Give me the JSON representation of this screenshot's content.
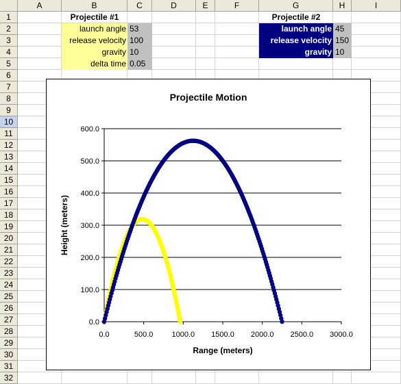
{
  "columns": [
    "A",
    "B",
    "C",
    "D",
    "E",
    "F",
    "G",
    "H",
    "I"
  ],
  "rows": [
    "1",
    "2",
    "3",
    "4",
    "5",
    "6",
    "7",
    "8",
    "9",
    "10",
    "11",
    "12",
    "13",
    "14",
    "15",
    "16",
    "17",
    "18",
    "19",
    "20",
    "21",
    "22",
    "23",
    "24",
    "25",
    "26",
    "27",
    "28",
    "29",
    "30",
    "31",
    "32"
  ],
  "selected_row": "10",
  "colors": {
    "projectile1": "#ffff00",
    "projectile2": "#000080",
    "label_fill1": "#ffff99",
    "label_fill2": "#000080",
    "value_fill": "#c0c0c0"
  },
  "projectile1": {
    "title": "Projectile #1",
    "params": [
      {
        "label": "launch angle",
        "value": "53"
      },
      {
        "label": "release velocity",
        "value": "100"
      },
      {
        "label": "gravity",
        "value": "10"
      },
      {
        "label": "delta time",
        "value": "0.05"
      }
    ]
  },
  "projectile2": {
    "title": "Projectile #2",
    "params": [
      {
        "label": "launch angle",
        "value": "45"
      },
      {
        "label": "release velocity",
        "value": "150"
      },
      {
        "label": "gravity",
        "value": "10"
      }
    ]
  },
  "chart_data": {
    "type": "scatter",
    "title": "Projectile Motion",
    "xlabel": "Range (meters)",
    "ylabel": "Height (meters)",
    "xlim": [
      0,
      3000
    ],
    "ylim": [
      0,
      600
    ],
    "x_ticks": [
      "0.0",
      "500.0",
      "1000.0",
      "1500.0",
      "2000.0",
      "2500.0",
      "3000.0"
    ],
    "y_ticks": [
      "0.0",
      "100.0",
      "200.0",
      "300.0",
      "400.0",
      "500.0",
      "600.0"
    ],
    "grid": "horizontal",
    "legend": "none",
    "series": [
      {
        "color": "#ffff00",
        "angle_deg": 53,
        "velocity": 100,
        "gravity": 10,
        "range": 961,
        "max_height": 319
      },
      {
        "color": "#000080",
        "angle_deg": 45,
        "velocity": 150,
        "gravity": 10,
        "range": 2250,
        "max_height": 562
      }
    ]
  }
}
